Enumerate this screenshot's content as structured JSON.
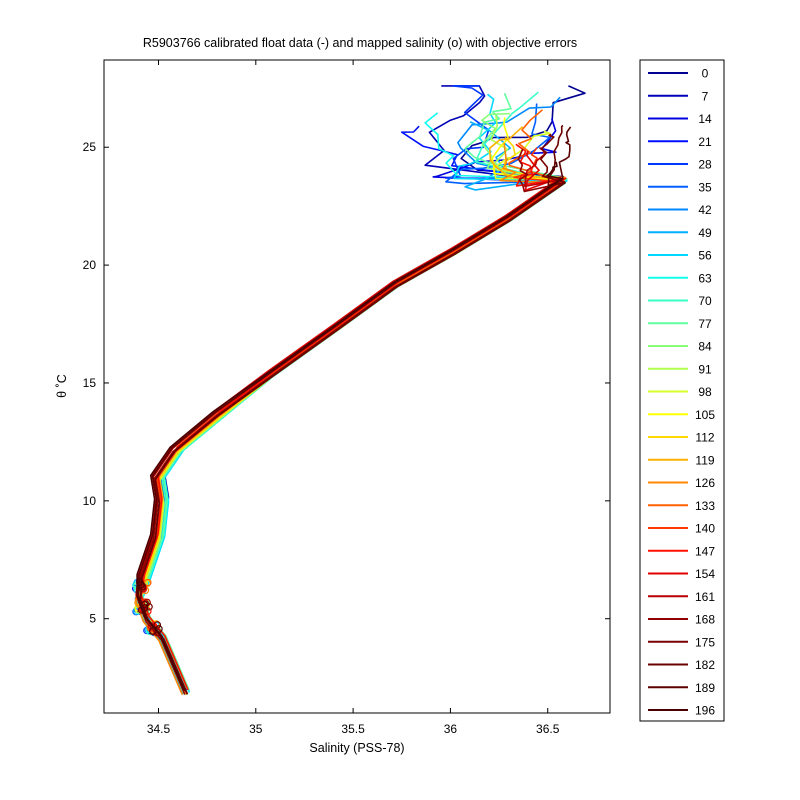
{
  "chart_data": {
    "type": "line",
    "title": "R5903766 calibrated float data (-) and mapped salinity (o) with objective errors",
    "xlabel": "Salinity (PSS-78)",
    "ylabel": "θ ˚C",
    "xlim": [
      34.22,
      36.82
    ],
    "ylim": [
      1.0,
      28.7
    ],
    "xticks": [
      34.5,
      35,
      35.5,
      36,
      36.5
    ],
    "yticks": [
      5,
      10,
      15,
      20,
      25
    ],
    "grid": false,
    "legend_position": "outside-right",
    "legend_entries": [
      "0",
      "7",
      "14",
      "21",
      "28",
      "35",
      "42",
      "49",
      "56",
      "63",
      "70",
      "77",
      "84",
      "91",
      "98",
      "105",
      "112",
      "119",
      "126",
      "133",
      "140",
      "147",
      "154",
      "161",
      "168",
      "175",
      "182",
      "189",
      "196"
    ],
    "legend_colors": [
      "#000090",
      "#0000b8",
      "#0000e0",
      "#0010ff",
      "#0038ff",
      "#0060ff",
      "#0088ff",
      "#00b0ff",
      "#00d8ff",
      "#10ffef",
      "#38ffc7",
      "#60ff9f",
      "#88ff77",
      "#b0ff4f",
      "#d8ff27",
      "#ffff00",
      "#ffd800",
      "#ffb000",
      "#ff8800",
      "#ff6000",
      "#ff3800",
      "#ff1000",
      "#e00000",
      "#b80000",
      "#900000",
      "#7a0000",
      "#6a0000",
      "#5a0000",
      "#4a0000"
    ],
    "profile_shape": {
      "description_units": "salinity PSS-78 vs potential temperature degC",
      "s": [
        34.64,
        34.52,
        34.44,
        34.4,
        34.43,
        34.5,
        34.52,
        34.5,
        34.6,
        34.82,
        35.08,
        35.42,
        35.72,
        36.02,
        36.3,
        36.58
      ],
      "t": [
        1.9,
        4.2,
        5.0,
        5.9,
        6.8,
        8.5,
        10.0,
        11.0,
        12.2,
        13.7,
        15.4,
        17.4,
        19.2,
        20.6,
        22.0,
        23.6
      ]
    }
  }
}
